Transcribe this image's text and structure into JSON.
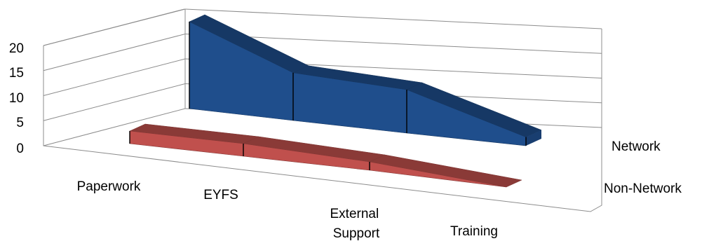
{
  "chart_data": {
    "type": "area",
    "view": "3d",
    "categories": [
      "Paperwork",
      "EYFS",
      "External Support",
      "Training"
    ],
    "series": [
      {
        "name": "Network",
        "values": [
          20,
          11,
          10,
          2
        ],
        "color": "#1f4e8c"
      },
      {
        "name": "Non-Network",
        "values": [
          3,
          3,
          2,
          0
        ],
        "color": "#c0504d"
      }
    ],
    "ylim": [
      0,
      20
    ],
    "yticks": [
      "0",
      "5",
      "10",
      "15",
      "20"
    ],
    "grid": true,
    "title": "",
    "xlabel": "",
    "ylabel": ""
  }
}
